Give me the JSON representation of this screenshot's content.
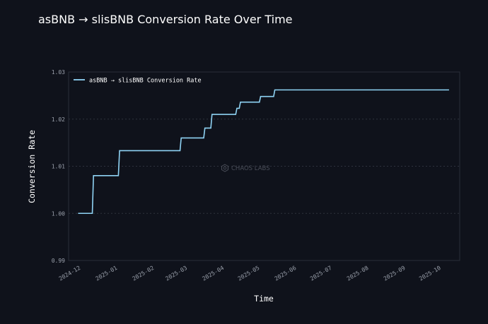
{
  "chart_data": {
    "type": "line",
    "title": "asBNB → slisBNB Conversion Rate Over Time",
    "xlabel": "Time",
    "ylabel": "Conversion Rate",
    "legend_label": "asBNB → slisBNB Conversion Rate",
    "legend_position": "top-left",
    "watermark": "CHAOS LABS",
    "grid": true,
    "line_color": "#8fd3f4",
    "xlim": [
      "2024-11-23",
      "2025-10-19"
    ],
    "ylim": [
      0.99,
      1.03
    ],
    "x_ticks": [
      {
        "date": "2024-12-01",
        "label": "2024-12"
      },
      {
        "date": "2025-01-01",
        "label": "2025-01"
      },
      {
        "date": "2025-02-01",
        "label": "2025-02"
      },
      {
        "date": "2025-03-01",
        "label": "2025-03"
      },
      {
        "date": "2025-04-01",
        "label": "2025-04"
      },
      {
        "date": "2025-05-01",
        "label": "2025-05"
      },
      {
        "date": "2025-06-01",
        "label": "2025-06"
      },
      {
        "date": "2025-07-01",
        "label": "2025-07"
      },
      {
        "date": "2025-08-01",
        "label": "2025-08"
      },
      {
        "date": "2025-09-01",
        "label": "2025-09"
      },
      {
        "date": "2025-10-01",
        "label": "2025-10"
      }
    ],
    "y_ticks": [
      {
        "value": 0.99,
        "label": "0.99"
      },
      {
        "value": 1.0,
        "label": "1.00"
      },
      {
        "value": 1.01,
        "label": "1.01"
      },
      {
        "value": 1.02,
        "label": "1.02"
      },
      {
        "value": 1.03,
        "label": "1.03"
      }
    ],
    "series": [
      {
        "name": "asBNB → slisBNB Conversion Rate",
        "points": [
          [
            "2024-12-01",
            1.0
          ],
          [
            "2024-12-13",
            1.0
          ],
          [
            "2024-12-14",
            1.008
          ],
          [
            "2025-01-04",
            1.008
          ],
          [
            "2025-01-05",
            1.0133
          ],
          [
            "2025-02-25",
            1.0133
          ],
          [
            "2025-02-26",
            1.016
          ],
          [
            "2025-03-17",
            1.016
          ],
          [
            "2025-03-18",
            1.0181
          ],
          [
            "2025-03-23",
            1.0181
          ],
          [
            "2025-03-24",
            1.021
          ],
          [
            "2025-04-13",
            1.021
          ],
          [
            "2025-04-14",
            1.0223
          ],
          [
            "2025-04-16",
            1.0223
          ],
          [
            "2025-04-17",
            1.0236
          ],
          [
            "2025-05-03",
            1.0236
          ],
          [
            "2025-05-04",
            1.0248
          ],
          [
            "2025-05-15",
            1.0248
          ],
          [
            "2025-05-16",
            1.0262
          ],
          [
            "2025-10-10",
            1.0262
          ]
        ]
      }
    ]
  }
}
